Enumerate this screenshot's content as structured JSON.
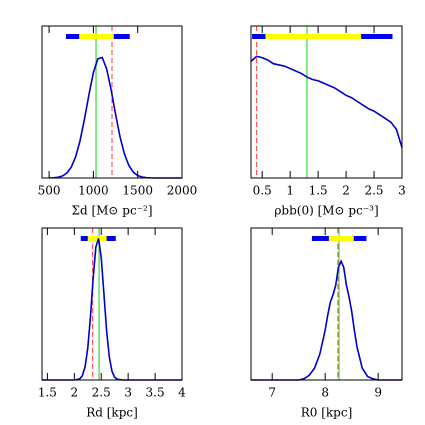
{
  "chart_data": [
    {
      "type": "line",
      "xlabel": "Σd [M⊙ pc⁻²]",
      "xlim": [
        420,
        2000
      ],
      "xticks": [
        500,
        1000,
        1500,
        2000
      ],
      "ylim": [
        0,
        1.25
      ],
      "color": "#0000cc",
      "x": [
        500,
        550,
        600,
        650,
        700,
        750,
        800,
        850,
        900,
        950,
        1000,
        1050,
        1100,
        1150,
        1200,
        1250,
        1300,
        1350,
        1400,
        1450,
        1500,
        1550,
        1600,
        1650,
        1700,
        1800,
        2000
      ],
      "values": [
        0.001,
        0.002,
        0.006,
        0.016,
        0.04,
        0.089,
        0.175,
        0.308,
        0.487,
        0.687,
        0.867,
        0.98,
        0.991,
        0.897,
        0.726,
        0.526,
        0.341,
        0.198,
        0.103,
        0.048,
        0.02,
        0.008,
        0.003,
        0.001,
        0,
        0,
        0
      ],
      "vlines": [
        {
          "value": 1030,
          "color": "#33dd33",
          "dash": false
        },
        {
          "value": 1210,
          "color": "#ff5555",
          "dash": true
        }
      ],
      "interval": {
        "outer": [
          690,
          1410
        ],
        "inner": [
          840,
          1230
        ],
        "outer_color": "#0000ee",
        "inner_color": "#ffff00"
      }
    },
    {
      "type": "line",
      "xlabel": "ρbb(0) [M⊙ pc⁻³]",
      "xlim": [
        0.3,
        3
      ],
      "xticks": [
        0.5,
        1,
        1.5,
        2,
        2.5,
        3
      ],
      "ylim": [
        0,
        1.25
      ],
      "color": "#0000cc",
      "x": [
        0.3,
        0.4,
        0.5,
        0.6,
        0.7,
        0.8,
        0.9,
        1.0,
        1.1,
        1.2,
        1.3,
        1.4,
        1.5,
        1.6,
        1.7,
        1.8,
        1.9,
        2.0,
        2.1,
        2.2,
        2.3,
        2.4,
        2.5,
        2.6,
        2.7,
        2.8,
        2.9,
        3.0
      ],
      "values": [
        0.96,
        1.0,
        0.99,
        0.97,
        0.94,
        0.93,
        0.92,
        0.9,
        0.88,
        0.86,
        0.83,
        0.81,
        0.8,
        0.78,
        0.76,
        0.74,
        0.71,
        0.68,
        0.66,
        0.63,
        0.6,
        0.57,
        0.55,
        0.52,
        0.49,
        0.46,
        0.4,
        0.25
      ],
      "vlines": [
        {
          "value": 1.3,
          "color": "#33dd33",
          "dash": false
        },
        {
          "value": 0.4,
          "color": "#ff5555",
          "dash": true
        }
      ],
      "interval": {
        "outer": [
          0.32,
          2.83
        ],
        "inner": [
          0.56,
          2.27
        ],
        "outer_color": "#0000ee",
        "inner_color": "#ffff00"
      }
    },
    {
      "type": "line",
      "xlabel": "Rd [kpc]",
      "xlim": [
        1.4,
        4
      ],
      "xticks": [
        1.5,
        2,
        2.5,
        3,
        3.5,
        4
      ],
      "ylim": [
        0,
        1.07
      ],
      "color": "#0000cc",
      "x": [
        1.4,
        2.0,
        2.1,
        2.15,
        2.2,
        2.25,
        2.3,
        2.35,
        2.4,
        2.45,
        2.5,
        2.55,
        2.6,
        2.65,
        2.7,
        2.75,
        2.8,
        2.9,
        4.0
      ],
      "values": [
        0,
        0,
        0.008,
        0.031,
        0.093,
        0.225,
        0.445,
        0.716,
        0.936,
        0.996,
        0.862,
        0.607,
        0.347,
        0.162,
        0.061,
        0.019,
        0.005,
        0,
        0
      ],
      "vlines": [
        {
          "value": 2.46,
          "color": "#33dd33",
          "dash": false
        },
        {
          "value": 2.34,
          "color": "#ff5555",
          "dash": true
        }
      ],
      "interval": {
        "outer": [
          2.12,
          2.77
        ],
        "inner": [
          2.25,
          2.6
        ],
        "outer_color": "#0000ee",
        "inner_color": "#ffff00"
      }
    },
    {
      "type": "line",
      "xlabel": "R0 [kpc]",
      "xlim": [
        6.6,
        9.45
      ],
      "xticks": [
        7,
        8,
        9
      ],
      "ylim": [
        0,
        1.28
      ],
      "color": "#0000cc",
      "x": [
        6.6,
        7.5,
        7.6,
        7.7,
        7.8,
        7.9,
        8.0,
        8.05,
        8.1,
        8.15,
        8.2,
        8.25,
        8.3,
        8.35,
        8.4,
        8.45,
        8.5,
        8.55,
        8.6,
        8.7,
        8.8,
        8.9,
        9.0,
        9.45
      ],
      "values": [
        0,
        0,
        0.01,
        0.04,
        0.1,
        0.22,
        0.42,
        0.55,
        0.66,
        0.72,
        0.8,
        0.95,
        1.0,
        0.95,
        0.8,
        0.7,
        0.58,
        0.42,
        0.28,
        0.1,
        0.03,
        0.01,
        0,
        0
      ],
      "vlines": [
        {
          "value": 8.26,
          "color": "#33dd33",
          "dash": false
        },
        {
          "value": 8.24,
          "color": "#ff5555",
          "dash": true
        }
      ],
      "interval": {
        "outer": [
          7.75,
          8.78
        ],
        "inner": [
          8.07,
          8.54
        ],
        "outer_color": "#0000ee",
        "inner_color": "#ffff00"
      }
    }
  ]
}
